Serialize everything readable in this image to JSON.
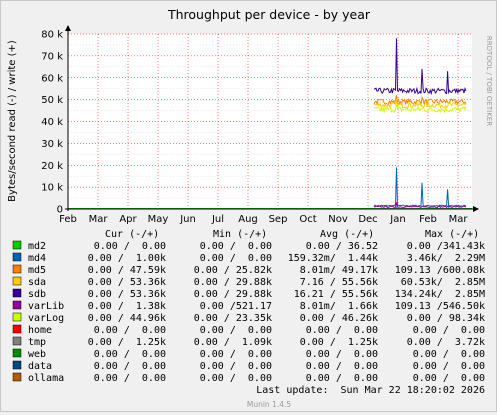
{
  "colors": {
    "background": "#f0f0f0",
    "plot_background": "#ffffff",
    "grid_major": "#ff0000",
    "grid_minor": "#e8c8c8",
    "axis": "#000000"
  },
  "chart_data": {
    "type": "line",
    "title": "Throughput per device - by year",
    "ylabel": "Bytes/second read (-) / write (+)",
    "watermark": "RRDTOOL / TOBI OETIKER",
    "x_ticks": [
      "Feb",
      "Mar",
      "Apr",
      "May",
      "Jun",
      "Jul",
      "Aug",
      "Sep",
      "Oct",
      "Nov",
      "Dec",
      "Jan",
      "Feb",
      "Mar"
    ],
    "y_ticks": [
      "0",
      "10 k",
      "20 k",
      "30 k",
      "40 k",
      "50 k",
      "60 k",
      "70 k",
      "80 k"
    ],
    "ylim": [
      0,
      80000
    ],
    "grid": true,
    "data_start_x": "mid-Dec",
    "series": [
      {
        "name": "md2",
        "color": "#00cc00",
        "approx_level": 0,
        "peaks": []
      },
      {
        "name": "md4",
        "color": "#0066b3",
        "approx_level": 1500,
        "peaks": [
          19000,
          12000,
          9000
        ]
      },
      {
        "name": "md5",
        "color": "#ff8000",
        "approx_level": 49000,
        "peaks": [
          52000,
          51000
        ]
      },
      {
        "name": "sda",
        "color": "#ffcc00",
        "approx_level": 47500,
        "peaks": [
          50000
        ]
      },
      {
        "name": "sdb",
        "color": "#330099",
        "approx_level": 54000,
        "peaks": [
          78000,
          64000,
          63000
        ]
      },
      {
        "name": "varLib",
        "color": "#990099",
        "approx_level": 1000,
        "peaks": [
          3000
        ]
      },
      {
        "name": "varLog",
        "color": "#ccff00",
        "approx_level": 45500,
        "peaks": [
          48000
        ]
      },
      {
        "name": "home",
        "color": "#ff0000",
        "approx_level": 0,
        "peaks": []
      },
      {
        "name": "tmp",
        "color": "#808080",
        "approx_level": 0,
        "peaks": [
          1200
        ]
      },
      {
        "name": "web",
        "color": "#008f00",
        "approx_level": 0,
        "peaks": []
      },
      {
        "name": "data",
        "color": "#00487d",
        "approx_level": 0,
        "peaks": []
      },
      {
        "name": "ollama",
        "color": "#b35a00",
        "approx_level": 0,
        "peaks": []
      }
    ]
  },
  "legend": {
    "headers": [
      "Cur (-/+)",
      "Min (-/+)",
      "Avg (-/+)",
      "Max (-/+)"
    ],
    "rows": [
      {
        "name": "md2",
        "cur": "0.00 /  0.00",
        "min": "0.00 /  0.00",
        "avg": "0.00 / 36.52",
        "max": "0.00 /341.43k"
      },
      {
        "name": "md4",
        "cur": "0.00 /  1.00k",
        "min": "0.00 /  0.00",
        "avg": "159.32m/  1.44k",
        "max": "3.46k/  2.29M"
      },
      {
        "name": "md5",
        "cur": "0.00 / 47.59k",
        "min": "0.00 / 25.82k",
        "avg": "8.01m/ 49.17k",
        "max": "109.13 /600.08k"
      },
      {
        "name": "sda",
        "cur": "0.00 / 53.36k",
        "min": "0.00 / 29.88k",
        "avg": "7.16 / 55.56k",
        "max": "60.53k/  2.85M"
      },
      {
        "name": "sdb",
        "cur": "0.00 / 53.36k",
        "min": "0.00 / 29.88k",
        "avg": "16.21 / 55.56k",
        "max": "134.24k/  2.85M"
      },
      {
        "name": "varLib",
        "cur": "0.00 /  1.38k",
        "min": "0.00 /521.17",
        "avg": "8.01m/  1.66k",
        "max": "109.13 /546.50k"
      },
      {
        "name": "varLog",
        "cur": "0.00 / 44.96k",
        "min": "0.00 / 23.35k",
        "avg": "0.00 / 46.26k",
        "max": "0.00 / 98.34k"
      },
      {
        "name": "home",
        "cur": "0.00 /  0.00",
        "min": "0.00 /  0.00",
        "avg": "0.00 /  0.00",
        "max": "0.00 /  0.00"
      },
      {
        "name": "tmp",
        "cur": "0.00 /  1.25k",
        "min": "0.00 /  1.09k",
        "avg": "0.00 /  1.25k",
        "max": "0.00 /  3.72k"
      },
      {
        "name": "web",
        "cur": "0.00 /  0.00",
        "min": "0.00 /  0.00",
        "avg": "0.00 /  0.00",
        "max": "0.00 /  0.00"
      },
      {
        "name": "data",
        "cur": "0.00 /  0.00",
        "min": "0.00 /  0.00",
        "avg": "0.00 /  0.00",
        "max": "0.00 /  0.00"
      },
      {
        "name": "ollama",
        "cur": "0.00 /  0.00",
        "min": "0.00 /  0.00",
        "avg": "0.00 /  0.00",
        "max": "0.00 /  0.00"
      }
    ],
    "last_update": "Last update:  Sun Mar 22 18:20:02 2026"
  },
  "footer": "Munin 1.4.5"
}
